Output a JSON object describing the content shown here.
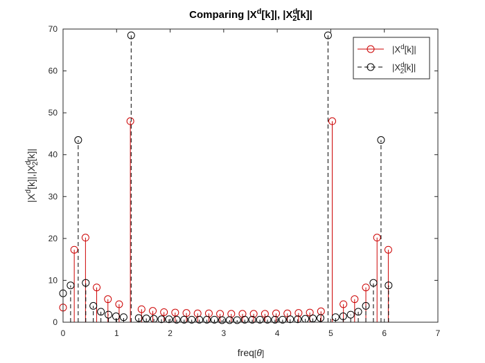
{
  "chart_data": {
    "type": "stem",
    "title": {
      "prefix": "Comparing ",
      "series1": {
        "base": "|X",
        "sup": "d",
        "rest": "[k]|"
      },
      "separator": ", ",
      "series2": {
        "base": "|X",
        "sup": "d",
        "sub": "2",
        "rest": "[k]|"
      }
    },
    "xlabel": {
      "base": "freq",
      "bracket_open": "[",
      "symbol": "θ",
      "bracket_close": "]"
    },
    "ylabel": {
      "base1": "|X",
      "sup1": "d",
      "rest1": "[k]|,|X",
      "sup2": "d",
      "sub2": "2",
      "rest2": "[k]|"
    },
    "xlim": [
      0,
      7
    ],
    "ylim": [
      0,
      70
    ],
    "xticks": [
      "0",
      "1",
      "2",
      "3",
      "4",
      "5",
      "6",
      "7"
    ],
    "yticks": [
      "0",
      "10",
      "20",
      "30",
      "40",
      "50",
      "60",
      "70"
    ],
    "grid": false,
    "legend": {
      "placement": "top-right",
      "entries": [
        {
          "base": "|X",
          "sup": "d",
          "sub": "",
          "rest": "[k]|"
        },
        {
          "base": "|X",
          "sup": "d",
          "sub": "2",
          "rest": "[k]|"
        }
      ]
    },
    "series": [
      {
        "color": "#cc0000",
        "line_style": "solid",
        "marker": "circle",
        "x": [
          0.0,
          0.209,
          0.419,
          0.628,
          0.838,
          1.047,
          1.257,
          1.466,
          1.676,
          1.885,
          2.094,
          2.304,
          2.513,
          2.723,
          2.932,
          3.142,
          3.351,
          3.56,
          3.77,
          3.979,
          4.189,
          4.398,
          4.608,
          4.817,
          5.027,
          5.236,
          5.445,
          5.655,
          5.864,
          6.074
        ],
        "values": [
          3.5,
          17.3,
          20.2,
          8.3,
          5.5,
          4.3,
          48.0,
          3.1,
          2.7,
          2.4,
          2.3,
          2.2,
          2.1,
          2.1,
          2.0,
          2.0,
          2.0,
          2.0,
          2.0,
          2.1,
          2.1,
          2.2,
          2.3,
          2.6,
          48.0,
          4.3,
          5.5,
          8.3,
          20.2,
          17.3
        ]
      },
      {
        "color": "#000000",
        "line_style": "dashed",
        "marker": "circle",
        "x": [
          0.0,
          0.141,
          0.283,
          0.424,
          0.565,
          0.707,
          0.848,
          0.99,
          1.131,
          1.272,
          1.414,
          1.555,
          1.696,
          1.838,
          1.979,
          2.121,
          2.262,
          2.403,
          2.545,
          2.686,
          2.827,
          2.969,
          3.11,
          3.251,
          3.393,
          3.534,
          3.676,
          3.817,
          3.958,
          4.1,
          4.241,
          4.382,
          4.524,
          4.665,
          4.807,
          4.948,
          5.089,
          5.231,
          5.372,
          5.513,
          5.655,
          5.796,
          5.938,
          6.079
        ],
        "values": [
          6.9,
          8.8,
          43.5,
          9.4,
          3.9,
          2.5,
          1.8,
          1.4,
          1.2,
          68.5,
          1.0,
          0.9,
          0.8,
          0.7,
          0.7,
          0.6,
          0.6,
          0.6,
          0.6,
          0.6,
          0.6,
          0.5,
          0.5,
          0.5,
          0.6,
          0.6,
          0.6,
          0.6,
          0.6,
          0.6,
          0.7,
          0.7,
          0.8,
          0.9,
          1.0,
          68.5,
          1.2,
          1.4,
          1.8,
          2.5,
          3.9,
          9.4,
          43.5,
          8.8
        ]
      }
    ]
  }
}
